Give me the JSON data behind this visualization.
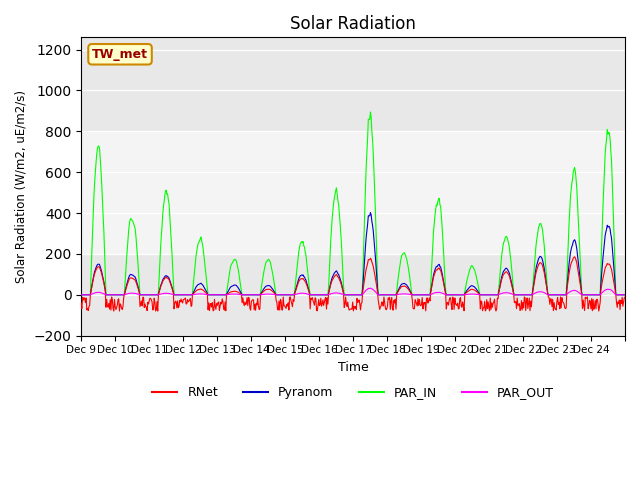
{
  "title": "Solar Radiation",
  "ylabel": "Solar Radiation (W/m2, uE/m2/s)",
  "xlabel": "Time",
  "ylim": [
    -200,
    1260
  ],
  "yticks": [
    -200,
    0,
    200,
    400,
    600,
    800,
    1000,
    1200
  ],
  "xlim": [
    0,
    16
  ],
  "xtick_positions": [
    0,
    1,
    2,
    3,
    4,
    5,
    6,
    7,
    8,
    9,
    10,
    11,
    12,
    13,
    14,
    15,
    16
  ],
  "xtick_labels": [
    "Dec 9",
    "Dec 10",
    "Dec 11",
    "Dec 12",
    "Dec 13",
    "Dec 14",
    "Dec 15",
    "Dec 16",
    "Dec 17",
    "Dec 18",
    "Dec 19",
    "Dec 20",
    "Dec 21",
    "Dec 22",
    "Dec 23",
    "Dec 24",
    ""
  ],
  "shade_y_min": 200,
  "shade_y_max": 800,
  "station_label": "TW_met",
  "colors": {
    "RNet": "#ff0000",
    "Pyranom": "#0000cc",
    "PAR_IN": "#00ff00",
    "PAR_OUT": "#ff00ff"
  },
  "par_in_peaks": [
    850,
    450,
    600,
    300,
    200,
    190,
    295,
    580,
    1000,
    240,
    540,
    160,
    330,
    400,
    670,
    950
  ],
  "pyranom_peaks": [
    175,
    120,
    110,
    60,
    55,
    50,
    110,
    130,
    450,
    65,
    170,
    50,
    150,
    215,
    290,
    400
  ],
  "rnet_peaks": [
    160,
    100,
    100,
    30,
    20,
    30,
    90,
    110,
    200,
    50,
    150,
    30,
    130,
    180,
    200,
    180
  ],
  "n_days": 16,
  "pts_per_day": 48,
  "bg_color": "#e8e8e8"
}
